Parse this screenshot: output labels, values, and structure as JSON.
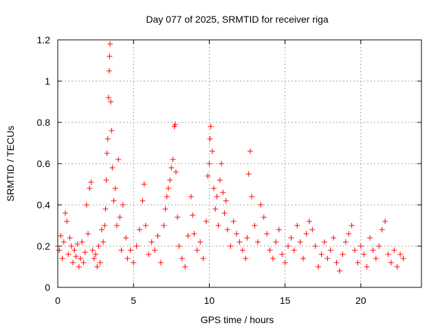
{
  "chart_data": {
    "type": "scatter",
    "title": "Day 077 of 2025, SRMTID for receiver riga",
    "xlabel": "GPS time / hours",
    "ylabel": "SRMTID / TECUs",
    "xlim": [
      0,
      24
    ],
    "ylim": [
      0,
      1.2
    ],
    "xticks": [
      0,
      5,
      10,
      15,
      20
    ],
    "yticks": [
      0,
      0.2,
      0.4,
      0.6,
      0.8,
      1.0,
      1.2
    ],
    "xtick_labels": [
      "0",
      "5",
      "10",
      "15",
      "20"
    ],
    "ytick_labels": [
      "0",
      "0.2",
      "0.4",
      "0.6",
      "0.8",
      "1",
      "1.2"
    ],
    "grid": true,
    "marker": "+",
    "color": "#ff0000",
    "series": [
      {
        "name": "SRMTID",
        "points": [
          [
            0.0,
            0.2
          ],
          [
            0.1,
            0.18
          ],
          [
            0.2,
            0.25
          ],
          [
            0.3,
            0.14
          ],
          [
            0.4,
            0.22
          ],
          [
            0.5,
            0.36
          ],
          [
            0.6,
            0.32
          ],
          [
            0.7,
            0.16
          ],
          [
            0.8,
            0.24
          ],
          [
            0.9,
            0.2
          ],
          [
            1.0,
            0.12
          ],
          [
            1.1,
            0.18
          ],
          [
            1.2,
            0.15
          ],
          [
            1.3,
            0.21
          ],
          [
            1.4,
            0.1
          ],
          [
            1.5,
            0.14
          ],
          [
            1.6,
            0.22
          ],
          [
            1.7,
            0.12
          ],
          [
            1.8,
            0.17
          ],
          [
            1.9,
            0.4
          ],
          [
            2.0,
            0.26
          ],
          [
            2.1,
            0.48
          ],
          [
            2.2,
            0.51
          ],
          [
            2.3,
            0.18
          ],
          [
            2.4,
            0.14
          ],
          [
            2.5,
            0.16
          ],
          [
            2.6,
            0.1
          ],
          [
            2.7,
            0.2
          ],
          [
            2.8,
            0.12
          ],
          [
            2.9,
            0.28
          ],
          [
            3.0,
            0.22
          ],
          [
            3.1,
            0.3
          ],
          [
            3.15,
            0.38
          ],
          [
            3.2,
            0.52
          ],
          [
            3.25,
            0.65
          ],
          [
            3.3,
            0.72
          ],
          [
            3.35,
            0.92
          ],
          [
            3.4,
            1.05
          ],
          [
            3.42,
            1.12
          ],
          [
            3.45,
            1.18
          ],
          [
            3.5,
            0.9
          ],
          [
            3.55,
            0.76
          ],
          [
            3.6,
            0.58
          ],
          [
            3.7,
            0.42
          ],
          [
            3.8,
            0.48
          ],
          [
            3.9,
            0.3
          ],
          [
            4.0,
            0.62
          ],
          [
            4.1,
            0.34
          ],
          [
            4.2,
            0.18
          ],
          [
            4.3,
            0.4
          ],
          [
            4.5,
            0.24
          ],
          [
            4.6,
            0.14
          ],
          [
            4.8,
            0.18
          ],
          [
            5.0,
            0.12
          ],
          [
            5.2,
            0.2
          ],
          [
            5.4,
            0.28
          ],
          [
            5.6,
            0.42
          ],
          [
            5.7,
            0.5
          ],
          [
            5.8,
            0.3
          ],
          [
            6.0,
            0.16
          ],
          [
            6.2,
            0.22
          ],
          [
            6.4,
            0.18
          ],
          [
            6.6,
            0.25
          ],
          [
            6.8,
            0.12
          ],
          [
            7.0,
            0.3
          ],
          [
            7.1,
            0.38
          ],
          [
            7.2,
            0.44
          ],
          [
            7.3,
            0.48
          ],
          [
            7.4,
            0.52
          ],
          [
            7.5,
            0.58
          ],
          [
            7.6,
            0.62
          ],
          [
            7.7,
            0.78
          ],
          [
            7.75,
            0.79
          ],
          [
            7.8,
            0.56
          ],
          [
            7.9,
            0.34
          ],
          [
            8.0,
            0.2
          ],
          [
            8.2,
            0.14
          ],
          [
            8.4,
            0.1
          ],
          [
            8.6,
            0.25
          ],
          [
            8.8,
            0.44
          ],
          [
            8.9,
            0.35
          ],
          [
            9.0,
            0.26
          ],
          [
            9.2,
            0.18
          ],
          [
            9.4,
            0.22
          ],
          [
            9.6,
            0.14
          ],
          [
            9.8,
            0.32
          ],
          [
            9.9,
            0.54
          ],
          [
            10.0,
            0.6
          ],
          [
            10.05,
            0.72
          ],
          [
            10.1,
            0.78
          ],
          [
            10.2,
            0.66
          ],
          [
            10.3,
            0.48
          ],
          [
            10.4,
            0.38
          ],
          [
            10.5,
            0.44
          ],
          [
            10.6,
            0.3
          ],
          [
            10.7,
            0.52
          ],
          [
            10.8,
            0.6
          ],
          [
            10.9,
            0.46
          ],
          [
            11.0,
            0.36
          ],
          [
            11.1,
            0.42
          ],
          [
            11.2,
            0.28
          ],
          [
            11.4,
            0.2
          ],
          [
            11.6,
            0.32
          ],
          [
            11.8,
            0.26
          ],
          [
            12.0,
            0.22
          ],
          [
            12.2,
            0.18
          ],
          [
            12.4,
            0.14
          ],
          [
            12.5,
            0.24
          ],
          [
            12.6,
            0.55
          ],
          [
            12.7,
            0.66
          ],
          [
            12.8,
            0.44
          ],
          [
            13.0,
            0.3
          ],
          [
            13.2,
            0.22
          ],
          [
            13.4,
            0.4
          ],
          [
            13.6,
            0.34
          ],
          [
            13.8,
            0.26
          ],
          [
            14.0,
            0.18
          ],
          [
            14.2,
            0.14
          ],
          [
            14.4,
            0.22
          ],
          [
            14.6,
            0.28
          ],
          [
            14.8,
            0.16
          ],
          [
            15.0,
            0.12
          ],
          [
            15.2,
            0.2
          ],
          [
            15.4,
            0.24
          ],
          [
            15.6,
            0.18
          ],
          [
            15.8,
            0.3
          ],
          [
            16.0,
            0.22
          ],
          [
            16.2,
            0.14
          ],
          [
            16.4,
            0.26
          ],
          [
            16.6,
            0.32
          ],
          [
            16.8,
            0.28
          ],
          [
            17.0,
            0.2
          ],
          [
            17.2,
            0.1
          ],
          [
            17.4,
            0.16
          ],
          [
            17.6,
            0.22
          ],
          [
            17.8,
            0.14
          ],
          [
            18.0,
            0.18
          ],
          [
            18.2,
            0.24
          ],
          [
            18.4,
            0.12
          ],
          [
            18.6,
            0.08
          ],
          [
            18.8,
            0.16
          ],
          [
            19.0,
            0.22
          ],
          [
            19.2,
            0.26
          ],
          [
            19.4,
            0.3
          ],
          [
            19.6,
            0.18
          ],
          [
            19.8,
            0.12
          ],
          [
            20.0,
            0.2
          ],
          [
            20.2,
            0.16
          ],
          [
            20.4,
            0.1
          ],
          [
            20.6,
            0.24
          ],
          [
            20.8,
            0.18
          ],
          [
            21.0,
            0.14
          ],
          [
            21.2,
            0.2
          ],
          [
            21.4,
            0.28
          ],
          [
            21.6,
            0.32
          ],
          [
            21.8,
            0.16
          ],
          [
            22.0,
            0.12
          ],
          [
            22.2,
            0.18
          ],
          [
            22.4,
            0.1
          ],
          [
            22.6,
            0.16
          ],
          [
            22.8,
            0.14
          ]
        ]
      }
    ]
  }
}
